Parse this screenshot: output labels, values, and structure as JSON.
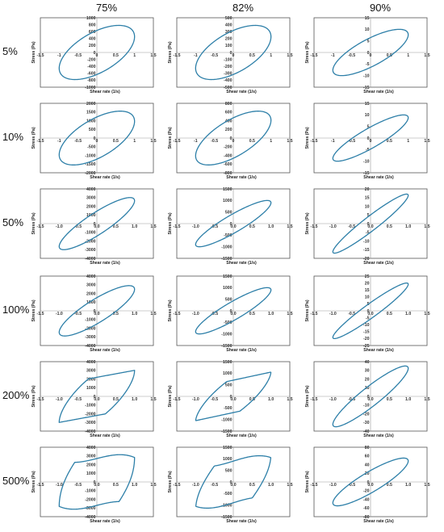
{
  "columns": [
    "75%",
    "82%",
    "90%"
  ],
  "rows": [
    "5%",
    "10%",
    "50%",
    "100%",
    "200%",
    "500%"
  ],
  "chart_data": [
    {
      "row": 0,
      "col": 0,
      "type": "line",
      "shape": "ellipse",
      "xlabel": "Shear rate (1/s)",
      "ylabel": "Stress (Pa)",
      "xlim": [
        -1.5,
        1.5
      ],
      "ylim": [
        -1000,
        1000
      ],
      "xticks": [
        "-1.5",
        "-1",
        "-0.5",
        "0",
        "0.5",
        "1",
        "1.5"
      ],
      "yticks": [
        "1000",
        "800",
        "600",
        "400",
        "200",
        "0",
        "-200",
        "-400",
        "-600",
        "-800",
        "-1000"
      ],
      "ytick_values": [
        1000,
        800,
        600,
        400,
        200,
        0,
        -200,
        -400,
        -600,
        -800,
        -1000
      ],
      "amplitude": 780,
      "phase": 0.95
    },
    {
      "row": 0,
      "col": 1,
      "type": "line",
      "shape": "ellipse",
      "xlabel": "Shear rate (1/s)",
      "ylabel": "Stress (Pa)",
      "xlim": [
        -1.5,
        1.5
      ],
      "ylim": [
        -500,
        500
      ],
      "xticks": [
        "-1.5",
        "-1",
        "-0.5",
        "0",
        "0.5",
        "1",
        "1.5"
      ],
      "yticks": [
        "500",
        "400",
        "300",
        "200",
        "100",
        "0",
        "-100",
        "-200",
        "-300",
        "-400",
        "-500"
      ],
      "ytick_values": [
        500,
        400,
        300,
        200,
        100,
        0,
        -100,
        -200,
        -300,
        -400,
        -500
      ],
      "amplitude": 390,
      "phase": 0.95
    },
    {
      "row": 0,
      "col": 2,
      "type": "line",
      "shape": "ellipse",
      "xlabel": "Shear rate (1/s)",
      "ylabel": "Stress (Pa)",
      "xlim": [
        -1.5,
        1.5
      ],
      "ylim": [
        -15,
        15
      ],
      "xticks": [
        "-1.5",
        "-1",
        "-0.5",
        "0",
        "0.5",
        "1",
        "1.5"
      ],
      "yticks": [
        "15",
        "10",
        "5",
        "0",
        "-5",
        "-10",
        "-15"
      ],
      "ytick_values": [
        15,
        10,
        5,
        0,
        -5,
        -10,
        -15
      ],
      "amplitude": 10,
      "phase": 0.7
    },
    {
      "row": 1,
      "col": 0,
      "type": "line",
      "shape": "ellipse",
      "xlabel": "Shear rate (1/s)",
      "ylabel": "Stress (Pa)",
      "xlim": [
        -1.5,
        1.5
      ],
      "ylim": [
        -2000,
        2000
      ],
      "xticks": [
        "-1.5",
        "-1",
        "-0.5",
        "0",
        "0.5",
        "1",
        "1.5"
      ],
      "yticks": [
        "2000",
        "1500",
        "1000",
        "500",
        "0",
        "-500",
        "-1000",
        "-1500",
        "-2000"
      ],
      "ytick_values": [
        2000,
        1500,
        1000,
        500,
        0,
        -500,
        -1000,
        -1500,
        -2000
      ],
      "amplitude": 1550,
      "phase": 0.9
    },
    {
      "row": 1,
      "col": 1,
      "type": "line",
      "shape": "ellipse",
      "xlabel": "Shear rate (1/s)",
      "ylabel": "Stress (Pa)",
      "xlim": [
        -1.5,
        1.5
      ],
      "ylim": [
        -800,
        800
      ],
      "xticks": [
        "-1.5",
        "-1",
        "-0.5",
        "0",
        "0.5",
        "1",
        "1.5"
      ],
      "yticks": [
        "800",
        "600",
        "400",
        "200",
        "0",
        "-200",
        "-400",
        "-600",
        "-800"
      ],
      "ytick_values": [
        800,
        600,
        400,
        200,
        0,
        -200,
        -400,
        -600,
        -800
      ],
      "amplitude": 620,
      "phase": 0.85
    },
    {
      "row": 1,
      "col": 2,
      "type": "line",
      "shape": "ellipse",
      "xlabel": "Shear rate (1/s)",
      "ylabel": "Stress (Pa)",
      "xlim": [
        -1.5,
        1.5
      ],
      "ylim": [
        -15,
        15
      ],
      "xticks": [
        "-1.5",
        "-1",
        "-0.5",
        "0",
        "0.5",
        "1",
        "1.5"
      ],
      "yticks": [
        "15",
        "10",
        "5",
        "0",
        "-5",
        "-10",
        "-15"
      ],
      "ytick_values": [
        15,
        10,
        5,
        0,
        -5,
        -10,
        -15
      ],
      "amplitude": 10,
      "phase": 0.5
    },
    {
      "row": 2,
      "col": 0,
      "type": "line",
      "shape": "ellipse",
      "xlabel": "Shear rate (1/s)",
      "ylabel": "Stress (Pa)",
      "xlim": [
        -1.5,
        1.5
      ],
      "ylim": [
        -4000,
        4000
      ],
      "xticks": [
        "-1.5",
        "-1.0",
        "-0.5",
        "0.0",
        "0.5",
        "1.0",
        "1.5"
      ],
      "yticks": [
        "4000",
        "3000",
        "2000",
        "1000",
        "0",
        "-1000",
        "-2000",
        "-3000",
        "-4000"
      ],
      "ytick_values": [
        4000,
        3000,
        2000,
        1000,
        0,
        -1000,
        -2000,
        -3000,
        -4000
      ],
      "amplitude": 3000,
      "phase": 0.5
    },
    {
      "row": 2,
      "col": 1,
      "type": "line",
      "shape": "ellipse",
      "xlabel": "Shear rate (1/s)",
      "ylabel": "Stress (Pa)",
      "xlim": [
        -1.5,
        1.5
      ],
      "ylim": [
        -1500,
        1500
      ],
      "xticks": [
        "-1.5",
        "-1.0",
        "-0.5",
        "0.0",
        "0.5",
        "1.0",
        "1.5"
      ],
      "yticks": [
        "1500",
        "1000",
        "500",
        "0",
        "-500",
        "-1000",
        "-1500"
      ],
      "ytick_values": [
        1500,
        1000,
        500,
        0,
        -500,
        -1000,
        -1500
      ],
      "amplitude": 1000,
      "phase": 0.45
    },
    {
      "row": 2,
      "col": 2,
      "type": "line",
      "shape": "ellipse",
      "xlabel": "Shear rate (1/s)",
      "ylabel": "Stress (Pa)",
      "xlim": [
        -1.5,
        1.5
      ],
      "ylim": [
        -20,
        20
      ],
      "xticks": [
        "-1.5",
        "-1.0",
        "-0.5",
        "0.0",
        "0.5",
        "1.0",
        "1.5"
      ],
      "yticks": [
        "20",
        "15",
        "10",
        "5",
        "0",
        "-5",
        "-10",
        "-15",
        "-20"
      ],
      "ytick_values": [
        20,
        15,
        10,
        5,
        0,
        -5,
        -10,
        -15,
        -20
      ],
      "amplitude": 17,
      "phase": 0.3
    },
    {
      "row": 3,
      "col": 0,
      "type": "line",
      "shape": "ellipse",
      "xlabel": "Shear rate (1/s)",
      "ylabel": "Stress (Pa)",
      "xlim": [
        -1.5,
        1.5
      ],
      "ylim": [
        -4000,
        4000
      ],
      "xticks": [
        "-1.5",
        "-1.0",
        "-0.5",
        "0.0",
        "0.5",
        "1.0",
        "1.5"
      ],
      "yticks": [
        "4000",
        "3000",
        "2000",
        "1000",
        "0",
        "-1000",
        "-2000",
        "-3000",
        "-4000"
      ],
      "ytick_values": [
        4000,
        3000,
        2000,
        1000,
        0,
        -1000,
        -2000,
        -3000,
        -4000
      ],
      "amplitude": 2900,
      "phase": 0.55
    },
    {
      "row": 3,
      "col": 1,
      "type": "line",
      "shape": "ellipse",
      "xlabel": "Shear rate (1/s)",
      "ylabel": "Stress (Pa)",
      "xlim": [
        -1.5,
        1.5
      ],
      "ylim": [
        -1500,
        1500
      ],
      "xticks": [
        "-1.5",
        "-1.0",
        "-0.5",
        "0.0",
        "0.5",
        "1.0",
        "1.5"
      ],
      "yticks": [
        "1500",
        "1000",
        "500",
        "0",
        "-500",
        "-1000",
        "-1500"
      ],
      "ytick_values": [
        1500,
        1000,
        500,
        0,
        -500,
        -1000,
        -1500
      ],
      "amplitude": 1000,
      "phase": 0.45
    },
    {
      "row": 3,
      "col": 2,
      "type": "line",
      "shape": "ellipse",
      "xlabel": "Shear rate (1/s)",
      "ylabel": "Stress (Pa)",
      "xlim": [
        -1.5,
        1.5
      ],
      "ylim": [
        -25,
        25
      ],
      "xticks": [
        "-1.5",
        "-1.0",
        "-0.5",
        "0.0",
        "0.5",
        "1.0",
        "1.5"
      ],
      "yticks": [
        "25",
        "20",
        "15",
        "10",
        "5",
        "0",
        "-5",
        "-10",
        "-15",
        "-20",
        "-25"
      ],
      "ytick_values": [
        25,
        20,
        15,
        10,
        5,
        0,
        -5,
        -10,
        -15,
        -20,
        -25
      ],
      "amplitude": 20,
      "phase": 0.3
    },
    {
      "row": 4,
      "col": 0,
      "type": "line",
      "shape": "parallelogram",
      "xlabel": "Shear rate (1/s)",
      "ylabel": "Stress (Pa)",
      "xlim": [
        -1.5,
        1.5
      ],
      "ylim": [
        -4000,
        4000
      ],
      "xticks": [
        "-1.5",
        "-1.0",
        "-0.5",
        "0.0",
        "0.5",
        "1.0",
        "1.5"
      ],
      "yticks": [
        "4000",
        "3000",
        "2000",
        "1000",
        "0",
        "-1000",
        "-2000",
        "-3000",
        "-4000"
      ],
      "ytick_values": [
        4000,
        3000,
        2000,
        1000,
        0,
        -1000,
        -2000,
        -3000,
        -4000
      ],
      "amplitude": 3000,
      "plateau": 2200,
      "phase": 0.9
    },
    {
      "row": 4,
      "col": 1,
      "type": "line",
      "shape": "parallelogram",
      "xlabel": "Shear rate (1/s)",
      "ylabel": "Stress (Pa)",
      "xlim": [
        -1.5,
        1.5
      ],
      "ylim": [
        -1500,
        1500
      ],
      "xticks": [
        "-1.5",
        "-1.0",
        "-0.5",
        "0.0",
        "0.5",
        "1.0",
        "1.5"
      ],
      "yticks": [
        "1500",
        "1000",
        "500",
        "0",
        "-500",
        "-1000",
        "-1500"
      ],
      "ytick_values": [
        1500,
        1000,
        500,
        0,
        -500,
        -1000,
        -1500
      ],
      "amplitude": 1050,
      "plateau": 700,
      "phase": 0.85
    },
    {
      "row": 4,
      "col": 2,
      "type": "line",
      "shape": "ellipse",
      "xlabel": "Shear rate (1/s)",
      "ylabel": "Stress (Pa)",
      "xlim": [
        -1.5,
        1.5
      ],
      "ylim": [
        -40,
        40
      ],
      "xticks": [
        "-1.5",
        "-1.0",
        "-0.5",
        "0.0",
        "0.5",
        "1.0",
        "1.5"
      ],
      "yticks": [
        "40",
        "30",
        "20",
        "10",
        "0",
        "-10",
        "-20",
        "-30",
        "-40"
      ],
      "ytick_values": [
        40,
        30,
        20,
        10,
        0,
        -10,
        -20,
        -30,
        -40
      ],
      "amplitude": 35,
      "phase": 0.4
    },
    {
      "row": 5,
      "col": 0,
      "type": "line",
      "shape": "looped",
      "xlabel": "Shear rate (1/s)",
      "ylabel": "Stress (Pa)",
      "xlim": [
        -1.5,
        1.5
      ],
      "ylim": [
        -4000,
        4000
      ],
      "xticks": [
        "-1.5",
        "-1.0",
        "-0.5",
        "0.0",
        "0.5",
        "1.0",
        "1.5"
      ],
      "yticks": [
        "4000",
        "3000",
        "2000",
        "1000",
        "0",
        "-1000",
        "-2000",
        "-3000",
        "-4000"
      ],
      "ytick_values": [
        4000,
        3000,
        2000,
        1000,
        0,
        -1000,
        -2000,
        -3000,
        -4000
      ],
      "amplitude": 3000,
      "plateau": 2700,
      "phase": 1.1
    },
    {
      "row": 5,
      "col": 1,
      "type": "line",
      "shape": "looped",
      "xlabel": "Shear rate (1/s)",
      "ylabel": "Stress (Pa)",
      "xlim": [
        -1.5,
        1.5
      ],
      "ylim": [
        -1500,
        1500
      ],
      "xticks": [
        "-1.5",
        "-1.0",
        "-0.5",
        "0.0",
        "0.5",
        "1.0",
        "1.5"
      ],
      "yticks": [
        "1500",
        "1000",
        "500",
        "0",
        "-500",
        "-1000",
        "-1500"
      ],
      "ytick_values": [
        1500,
        1000,
        500,
        0,
        -500,
        -1000,
        -1500
      ],
      "amplitude": 1100,
      "plateau": 900,
      "phase": 1.0
    },
    {
      "row": 5,
      "col": 2,
      "type": "line",
      "shape": "ellipse",
      "xlabel": "Shear rate (1/s)",
      "ylabel": "Stress (Pa)",
      "xlim": [
        -1.5,
        1.5
      ],
      "ylim": [
        -80,
        80
      ],
      "xticks": [
        "-1.5",
        "-1.0",
        "-0.5",
        "0.0",
        "0.5",
        "1.0",
        "1.5"
      ],
      "yticks": [
        "80",
        "60",
        "40",
        "20",
        "0",
        "-20",
        "-40",
        "-60",
        "-80"
      ],
      "ytick_values": [
        80,
        60,
        40,
        20,
        0,
        -20,
        -40,
        -60,
        -80
      ],
      "amplitude": 55,
      "phase": 0.5
    }
  ],
  "line_color": "#2d7fa8"
}
